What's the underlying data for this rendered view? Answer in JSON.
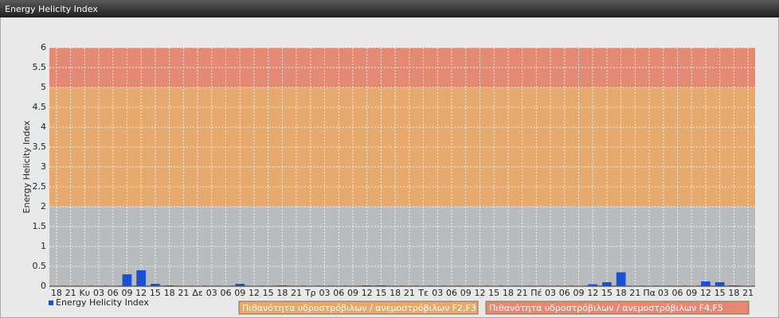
{
  "chart_data": {
    "type": "bar",
    "title": "Energy Helicity Index",
    "y_label": "Energy Helicity Index",
    "categories": [
      "18",
      "21",
      "Κυ",
      "03",
      "06",
      "09",
      "12",
      "15",
      "18",
      "21",
      "Δε",
      "03",
      "06",
      "09",
      "12",
      "15",
      "18",
      "21",
      "Τρ",
      "03",
      "06",
      "09",
      "12",
      "15",
      "18",
      "21",
      "Τε",
      "03",
      "06",
      "09",
      "12",
      "15",
      "18",
      "21",
      "Πέ",
      "03",
      "06",
      "09",
      "12",
      "15",
      "18",
      "21",
      "Πα",
      "03",
      "06",
      "09",
      "12",
      "15",
      "18",
      "21"
    ],
    "series": [
      {
        "name": "Energy Helicity Index",
        "color": "#1a4fd6",
        "values": [
          0.01,
          0.01,
          0.01,
          0.01,
          0.01,
          0.3,
          0.4,
          0.06,
          0.02,
          0.01,
          0.01,
          0.01,
          0.01,
          0.06,
          0.01,
          0.01,
          0.02,
          0.01,
          0.01,
          0.01,
          0.01,
          0.01,
          0.02,
          0.02,
          0.01,
          0.01,
          0.01,
          0.01,
          0.01,
          0.01,
          0.01,
          0.01,
          0.01,
          0.01,
          0.01,
          0.01,
          0.01,
          0.01,
          0.05,
          0.1,
          0.35,
          0.01,
          0.01,
          0.01,
          0.01,
          0.01,
          0.12,
          0.1,
          0.02,
          0.01
        ]
      }
    ],
    "ylim": [
      0,
      6
    ],
    "yticks": [
      0,
      0.5,
      1,
      1.5,
      2,
      2.5,
      3,
      3.5,
      4,
      4.5,
      5,
      5.5,
      6
    ],
    "grid": true,
    "bands": [
      {
        "range": [
          0,
          2
        ],
        "color": "#b9bcbf"
      },
      {
        "range": [
          2,
          5
        ],
        "color": "#e6a96e",
        "name": "Πιθανότητα υδροστρόβιλων / ανεμοστρόβιλων F2,F3"
      },
      {
        "range": [
          5,
          6
        ],
        "color": "#e48a74",
        "name": "Πιθανότητα υδροστρόβιλων / ανεμοστρόβιλων F4,F5"
      }
    ]
  }
}
